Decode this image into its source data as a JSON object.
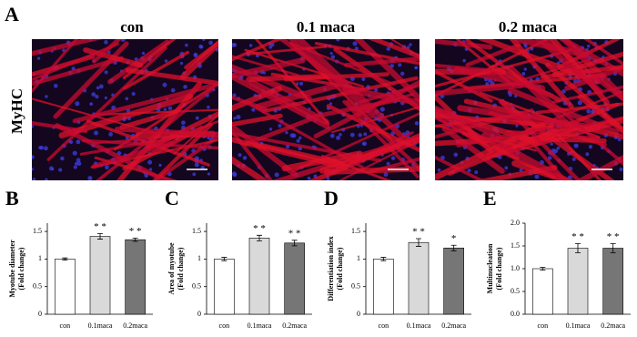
{
  "figure": {
    "panel": "A",
    "row_label": "MyHC",
    "columns": [
      "con",
      "0.1 maca",
      "0.2 maca"
    ]
  },
  "chart_data": [
    {
      "type": "bar",
      "panel": "B",
      "ylabel": [
        "Myotube diameter",
        "(Fold change)"
      ],
      "categories": [
        "con",
        "0.1maca",
        "0.2maca"
      ],
      "values": [
        1.0,
        1.41,
        1.35
      ],
      "errors": [
        0.02,
        0.05,
        0.03
      ],
      "significance": [
        null,
        "* *",
        "* *"
      ],
      "colors": [
        "#ffffff",
        "#d9d9d9",
        "#767676"
      ],
      "ylim": [
        0,
        1.65
      ],
      "yticks": [
        0,
        0.5,
        1,
        1.5
      ]
    },
    {
      "type": "bar",
      "panel": "C",
      "ylabel": [
        "Area of myotube",
        "(Fold change)"
      ],
      "categories": [
        "con",
        "0.1maca",
        "0.2maca"
      ],
      "values": [
        1.0,
        1.38,
        1.29
      ],
      "errors": [
        0.03,
        0.05,
        0.05
      ],
      "significance": [
        null,
        "* *",
        "* *"
      ],
      "colors": [
        "#ffffff",
        "#d9d9d9",
        "#767676"
      ],
      "ylim": [
        0,
        1.65
      ],
      "yticks": [
        0,
        0.5,
        1,
        1.5
      ]
    },
    {
      "type": "bar",
      "panel": "D",
      "ylabel": [
        "Differentiation index",
        "(Fold change)"
      ],
      "categories": [
        "con",
        "0.1maca",
        "0.2maca"
      ],
      "values": [
        1.0,
        1.3,
        1.2
      ],
      "errors": [
        0.03,
        0.07,
        0.05
      ],
      "significance": [
        null,
        "* *",
        "*"
      ],
      "colors": [
        "#ffffff",
        "#d9d9d9",
        "#767676"
      ],
      "ylim": [
        0,
        1.65
      ],
      "yticks": [
        0,
        0.5,
        1,
        1.5
      ]
    },
    {
      "type": "bar",
      "panel": "E",
      "ylabel": [
        "Multinucleation",
        "(Fold change)"
      ],
      "categories": [
        "con",
        "0.1maca",
        "0.2maca"
      ],
      "values": [
        1.0,
        1.45,
        1.45
      ],
      "errors": [
        0.03,
        0.1,
        0.1
      ],
      "significance": [
        null,
        "* *",
        "* *"
      ],
      "colors": [
        "#ffffff",
        "#d9d9d9",
        "#767676"
      ],
      "ylim": [
        0,
        2.0
      ],
      "yticks": [
        {
          "value": 0,
          "label": "0.0"
        },
        {
          "value": 0.5,
          "label": "0.5"
        },
        {
          "value": 1,
          "label": "1.0"
        },
        {
          "value": 1.5,
          "label": "1.5"
        },
        {
          "value": 2,
          "label": "2.0"
        }
      ]
    }
  ]
}
